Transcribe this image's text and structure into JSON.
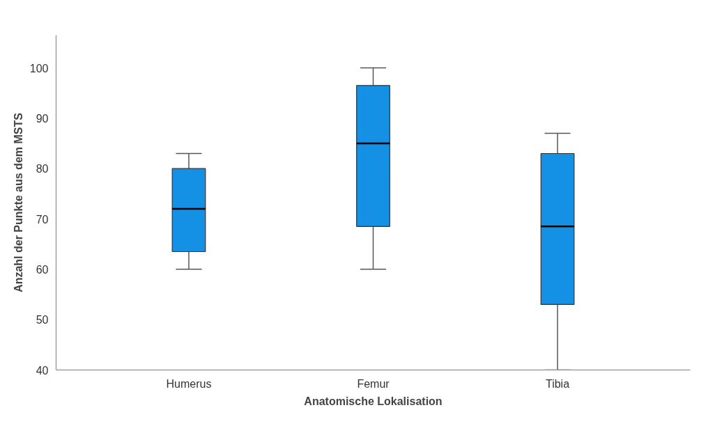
{
  "chart_data": {
    "type": "box",
    "xlabel": "Anatomische Lokalisation",
    "ylabel": "Anzahl der Punkte aus dem MSTS",
    "categories": [
      "Humerus",
      "Femur",
      "Tibia"
    ],
    "series": [
      {
        "color": "#1490e4",
        "boxes": [
          {
            "low": 60,
            "q1": 63.5,
            "median": 72,
            "q3": 80,
            "high": 83
          },
          {
            "low": 60,
            "q1": 68.5,
            "median": 85,
            "q3": 96.5,
            "high": 100
          },
          {
            "low": 40,
            "q1": 53,
            "median": 68.5,
            "q3": 83,
            "high": 87
          }
        ]
      }
    ],
    "ylim": [
      40,
      106.5
    ],
    "yticks": [
      40,
      50,
      60,
      70,
      80,
      90,
      100
    ],
    "grid": false
  }
}
